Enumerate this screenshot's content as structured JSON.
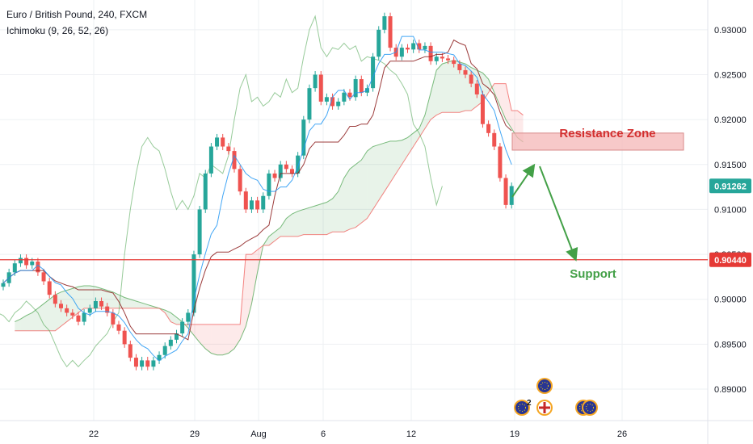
{
  "header": {
    "title": "Euro / British Pound, 240, FXCM",
    "indicator": "Ichimoku (9, 26, 52, 26)"
  },
  "chart_data": {
    "type": "candlestick",
    "symbol": "EURGBP",
    "interval": "240",
    "y_ticks": [
      "0.93000",
      "0.92500",
      "0.92000",
      "0.91500",
      "0.91000",
      "0.90500",
      "0.90000",
      "0.89500",
      "0.89000"
    ],
    "x_ticks": [
      "22",
      "29",
      "Aug",
      "6",
      "12",
      "19",
      "26"
    ],
    "ylim": [
      0.8865,
      0.9325
    ],
    "last_price": {
      "label": "0.91262",
      "value": 0.91262,
      "color": "#26a69a"
    },
    "support_level": {
      "label": "0.90440",
      "value": 0.9044,
      "color": "#e53935"
    },
    "closes": [
      0.9018,
      0.903,
      0.904,
      0.9046,
      0.9038,
      0.9042,
      0.903,
      0.902,
      0.9005,
      0.8995,
      0.899,
      0.8985,
      0.8982,
      0.8975,
      0.8985,
      0.899,
      0.8998,
      0.8992,
      0.8985,
      0.8972,
      0.8965,
      0.895,
      0.8935,
      0.8925,
      0.8932,
      0.8925,
      0.8932,
      0.8938,
      0.8948,
      0.8955,
      0.8962,
      0.8975,
      0.8985,
      0.905,
      0.91,
      0.914,
      0.917,
      0.918,
      0.917,
      0.9165,
      0.9145,
      0.912,
      0.91,
      0.911,
      0.91,
      0.9115,
      0.914,
      0.9135,
      0.915,
      0.9145,
      0.914,
      0.916,
      0.92,
      0.9235,
      0.925,
      0.922,
      0.9225,
      0.9215,
      0.922,
      0.923,
      0.9225,
      0.9245,
      0.923,
      0.9235,
      0.927,
      0.93,
      0.9315,
      0.928,
      0.927,
      0.928,
      0.9278,
      0.9285,
      0.9278,
      0.9282,
      0.9265,
      0.927,
      0.9268,
      0.9266,
      0.9262,
      0.9255,
      0.925,
      0.924,
      0.9228,
      0.9195,
      0.9185,
      0.917,
      0.9135,
      0.9105,
      0.9126
    ],
    "ichimoku": {
      "tenkan_color": "#2196f3",
      "kijun_color": "#8b1a1a",
      "span_a_color": "#43a047",
      "span_b_color": "#ef5350",
      "lagging_color": "#43a047",
      "kumo_bull_fill": "#43a047",
      "kumo_bear_fill": "#ef5350",
      "span_a": [
        0.8975,
        0.8978,
        0.8982,
        0.8985,
        0.899,
        0.8995,
        0.9,
        0.9005,
        0.9008,
        0.901,
        0.9012,
        0.9014,
        0.9015,
        0.9015,
        0.9014,
        0.9012,
        0.901,
        0.9008,
        0.9005,
        0.9002,
        0.9,
        0.8998,
        0.8996,
        0.8994,
        0.8992,
        0.899,
        0.8988,
        0.8985,
        0.898,
        0.8975,
        0.8968,
        0.896,
        0.8952,
        0.8945,
        0.894,
        0.8938,
        0.8938,
        0.894,
        0.8945,
        0.8955,
        0.897,
        0.8995,
        0.903,
        0.906,
        0.907,
        0.9075,
        0.908,
        0.909,
        0.9095,
        0.9098,
        0.91,
        0.9102,
        0.9104,
        0.9106,
        0.9108,
        0.9112,
        0.912,
        0.9135,
        0.9145,
        0.915,
        0.9155,
        0.9165,
        0.917,
        0.9172,
        0.9174,
        0.9176,
        0.9176,
        0.9177,
        0.918,
        0.9185,
        0.919,
        0.9205,
        0.923,
        0.9255,
        0.9262,
        0.9264,
        0.9266,
        0.9264,
        0.9262,
        0.9258,
        0.9255,
        0.9252,
        0.9245,
        0.923,
        0.9215,
        0.92,
        0.919,
        0.918,
        0.9175
      ],
      "span_b": [
        0.8965,
        0.8965,
        0.8965,
        0.8965,
        0.8965,
        0.8965,
        0.8965,
        0.8965,
        0.897,
        0.8975,
        0.898,
        0.8985,
        0.899,
        0.899,
        0.899,
        0.899,
        0.899,
        0.899,
        0.899,
        0.899,
        0.899,
        0.899,
        0.899,
        0.899,
        0.899,
        0.899,
        0.8985,
        0.8975,
        0.8972,
        0.8972,
        0.8972,
        0.8972,
        0.8972,
        0.8972,
        0.8972,
        0.8972,
        0.8972,
        0.8972,
        0.8972,
        0.8972,
        0.905,
        0.905,
        0.9055,
        0.906,
        0.906,
        0.9065,
        0.907,
        0.907,
        0.907,
        0.907,
        0.9072,
        0.9072,
        0.9072,
        0.9072,
        0.9072,
        0.9075,
        0.9075,
        0.9075,
        0.9078,
        0.908,
        0.9085,
        0.909,
        0.91,
        0.911,
        0.912,
        0.913,
        0.914,
        0.915,
        0.916,
        0.917,
        0.918,
        0.919,
        0.92,
        0.9205,
        0.9208,
        0.9208,
        0.9208,
        0.9208,
        0.921,
        0.921,
        0.9215,
        0.922,
        0.923,
        0.924,
        0.924,
        0.924,
        0.921,
        0.921,
        0.9205
      ]
    }
  },
  "annotations": {
    "resistance_label": "Resistance Zone",
    "support_label": "Support",
    "resistance_color": "#d32f2f",
    "support_color": "#43a047",
    "zone_top": 0.9185,
    "zone_bottom": 0.9166
  },
  "events": [
    {
      "icon": "eu-flag-icon"
    },
    {
      "icon": "uk-flag-icon"
    },
    {
      "icon": "eu-flag-icon",
      "count": "2"
    },
    {
      "icon": "eu-flag-icon"
    },
    {
      "icon": "eu-flag-icon"
    }
  ]
}
